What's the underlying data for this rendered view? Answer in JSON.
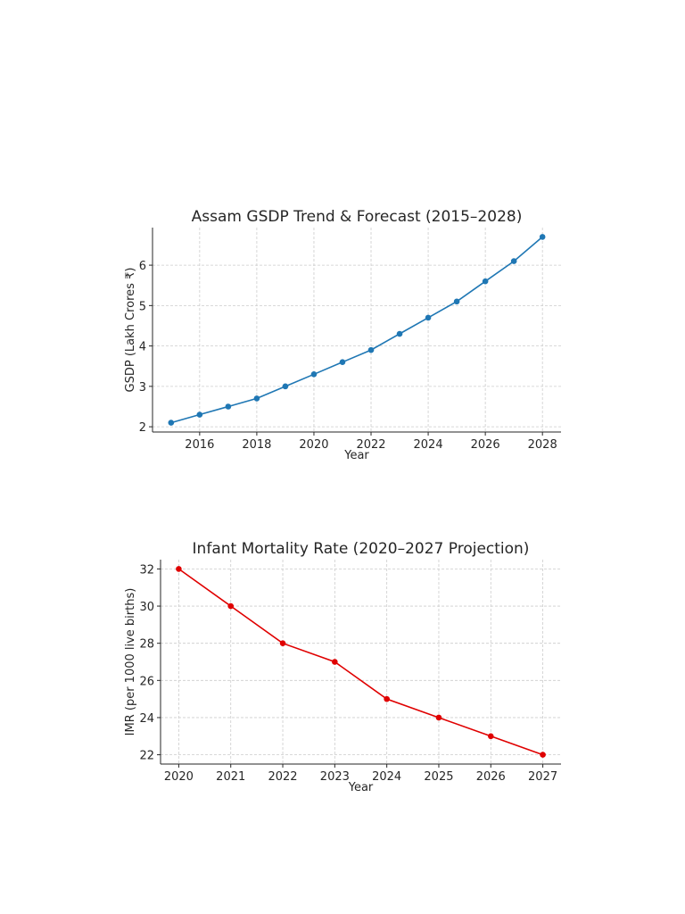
{
  "chart_data": [
    {
      "type": "line",
      "title": "Assam GSDP Trend & Forecast (2015–2028)",
      "xlabel": "Year",
      "ylabel": "GSDP (Lakh Crores ₹)",
      "x": [
        2015,
        2016,
        2017,
        2018,
        2019,
        2020,
        2021,
        2022,
        2023,
        2024,
        2025,
        2026,
        2027,
        2028
      ],
      "series": [
        {
          "values": [
            2.1,
            2.3,
            2.5,
            2.7,
            3.0,
            3.3,
            3.6,
            3.9,
            4.3,
            4.7,
            5.1,
            5.6,
            6.1,
            6.7
          ],
          "color": "#1f77b4"
        }
      ],
      "xticks": [
        2016,
        2018,
        2020,
        2022,
        2024,
        2026,
        2028
      ],
      "yticks": [
        2,
        3,
        4,
        5,
        6
      ],
      "xlim": [
        2014.35,
        2028.65
      ],
      "ylim": [
        1.87,
        6.93
      ],
      "grid": true
    },
    {
      "type": "line",
      "title": "Infant Mortality Rate (2020–2027 Projection)",
      "xlabel": "Year",
      "ylabel": "IMR (per 1000 live births)",
      "x": [
        2020,
        2021,
        2022,
        2023,
        2024,
        2025,
        2026,
        2027
      ],
      "series": [
        {
          "values": [
            32,
            30,
            28,
            27,
            25,
            24,
            23,
            22
          ],
          "color": "#e00000"
        }
      ],
      "xticks": [
        2020,
        2021,
        2022,
        2023,
        2024,
        2025,
        2026,
        2027
      ],
      "yticks": [
        22,
        24,
        26,
        28,
        30,
        32
      ],
      "xlim": [
        2019.65,
        2027.35
      ],
      "ylim": [
        21.5,
        32.5
      ],
      "grid": true
    }
  ]
}
